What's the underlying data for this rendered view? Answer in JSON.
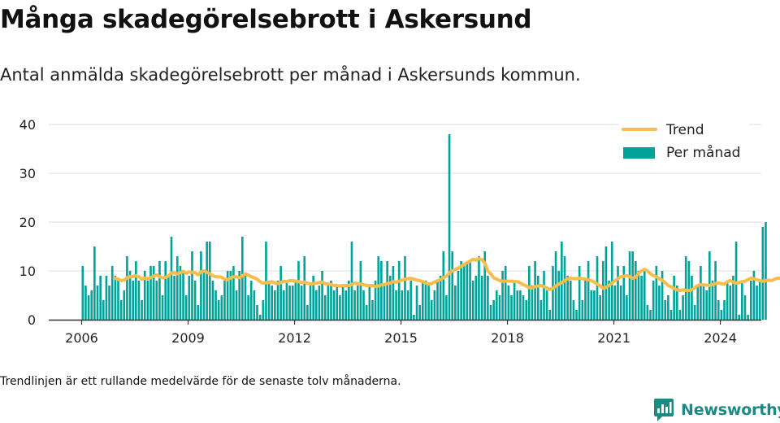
{
  "title": "Många skadegörelsebrott i Askersund",
  "subtitle": "Antal anmälda skadegörelsebrott per månad i Askersunds kommun.",
  "note": "Trendlinjen är ett rullande medelvärde för de senaste tolv månaderna.",
  "brand": {
    "name": "Newsworthy",
    "icon": "newsworthy-logo-icon"
  },
  "colors": {
    "bar": "#00a39a",
    "trend": "#f8bd4b",
    "grid": "#dddddd",
    "axis": "#333333"
  },
  "chart_data": {
    "type": "bar",
    "x_start": "2006-01",
    "ylim": [
      0,
      40
    ],
    "yticks": [
      0,
      10,
      20,
      30,
      40
    ],
    "xtick_labels": [
      "2006",
      "2009",
      "2012",
      "2015",
      "2018",
      "2021",
      "2024"
    ],
    "grid": true,
    "legend_position": "top-right",
    "series": [
      {
        "name": "Per månad",
        "type": "bar",
        "values": [
          11,
          7,
          5,
          6,
          15,
          7,
          9,
          4,
          9,
          7,
          11,
          9,
          8,
          4,
          6,
          13,
          10,
          8,
          12,
          8,
          4,
          10,
          8,
          11,
          11,
          8,
          12,
          5,
          12,
          9,
          17,
          9,
          13,
          11,
          10,
          5,
          9,
          14,
          8,
          3,
          14,
          10,
          16,
          16,
          8,
          6,
          4,
          5,
          8,
          10,
          10,
          11,
          6,
          10,
          17,
          9,
          5,
          8,
          6,
          3,
          1,
          4,
          16,
          8,
          7,
          6,
          8,
          11,
          6,
          8,
          7,
          7,
          8,
          12,
          7,
          13,
          3,
          7,
          9,
          6,
          7,
          10,
          5,
          7,
          8,
          6,
          7,
          5,
          7,
          6,
          8,
          16,
          6,
          7,
          12,
          6,
          3,
          7,
          4,
          8,
          13,
          12,
          7,
          12,
          9,
          11,
          6,
          12,
          6,
          13,
          6,
          8,
          1,
          7,
          3,
          8,
          8,
          7,
          4,
          6,
          8,
          9,
          14,
          5,
          38,
          14,
          7,
          10,
          12,
          11,
          12,
          12,
          8,
          9,
          13,
          9,
          14,
          9,
          3,
          4,
          6,
          5,
          10,
          11,
          7,
          5,
          8,
          6,
          6,
          5,
          4,
          11,
          7,
          12,
          9,
          4,
          10,
          6,
          2,
          11,
          14,
          10,
          16,
          13,
          9,
          8,
          4,
          2,
          11,
          4,
          8,
          12,
          6,
          6,
          13,
          5,
          12,
          15,
          8,
          16,
          7,
          11,
          7,
          11,
          5,
          14,
          14,
          12,
          10,
          9,
          10,
          3,
          2,
          8,
          11,
          7,
          10,
          4,
          5,
          2,
          9,
          7,
          2,
          5,
          13,
          12,
          9,
          3,
          7,
          11,
          7,
          6,
          14,
          8,
          12,
          4,
          2,
          4,
          8,
          7,
          9,
          16,
          1,
          8,
          5,
          1,
          8,
          10,
          7,
          8,
          19,
          20
        ]
      },
      {
        "name": "Trend",
        "type": "line",
        "values": [
          null,
          null,
          null,
          null,
          null,
          null,
          null,
          null,
          null,
          null,
          null,
          8.5,
          8.3,
          8.0,
          8.1,
          8.6,
          8.8,
          8.9,
          9.0,
          8.8,
          8.3,
          8.5,
          8.4,
          8.6,
          8.9,
          9.2,
          8.8,
          8.6,
          8.7,
          8.9,
          9.6,
          9.6,
          9.4,
          9.6,
          9.9,
          9.5,
          9.8,
          9.7,
          9.6,
          9.2,
          9.8,
          10.0,
          9.7,
          9.4,
          9.0,
          8.8,
          8.8,
          8.7,
          8.3,
          8.2,
          8.6,
          8.8,
          8.8,
          8.6,
          9.0,
          9.4,
          9.1,
          8.8,
          8.6,
          8.3,
          7.8,
          7.5,
          7.6,
          7.6,
          7.8,
          7.5,
          7.4,
          7.6,
          7.9,
          7.8,
          8.0,
          8.0,
          7.9,
          7.8,
          7.6,
          7.7,
          7.5,
          7.3,
          7.4,
          7.5,
          7.6,
          7.7,
          7.4,
          7.3,
          7.2,
          7.0,
          7.0,
          6.9,
          7.0,
          7.0,
          7.0,
          7.2,
          7.5,
          7.4,
          7.3,
          7.2,
          7.0,
          7.0,
          7.0,
          6.8,
          6.9,
          7.1,
          7.2,
          7.4,
          7.5,
          7.8,
          7.7,
          7.9,
          8.1,
          8.3,
          8.4,
          8.5,
          8.3,
          8.1,
          8.0,
          7.8,
          7.5,
          7.3,
          7.4,
          7.7,
          8.0,
          8.2,
          8.6,
          8.9,
          9.6,
          10.0,
          10.3,
          10.6,
          10.9,
          11.3,
          11.7,
          12.0,
          12.4,
          12.2,
          12.5,
          12.3,
          11.6,
          10.0,
          9.4,
          8.6,
          8.3,
          8.0,
          7.9,
          7.9,
          7.9,
          7.9,
          7.8,
          7.8,
          7.5,
          7.2,
          6.9,
          6.6,
          6.5,
          6.8,
          6.9,
          7.0,
          6.8,
          6.5,
          6.2,
          6.4,
          6.9,
          7.3,
          7.6,
          8.0,
          8.4,
          8.5,
          8.4,
          8.4,
          8.5,
          8.4,
          8.3,
          8.2,
          8.0,
          7.7,
          7.3,
          6.9,
          6.4,
          6.6,
          7.0,
          7.5,
          8.0,
          8.4,
          8.8,
          8.9,
          9.0,
          8.8,
          8.5,
          8.7,
          9.5,
          10.0,
          10.3,
          10.0,
          9.4,
          9.0,
          8.8,
          8.4,
          8.1,
          7.6,
          7.0,
          6.7,
          6.4,
          6.1,
          6.0,
          6.1,
          6.0,
          6.0,
          6.1,
          6.6,
          7.0,
          7.2,
          7.1,
          7.1,
          7.0,
          7.2,
          7.4,
          7.5,
          7.4,
          7.3,
          7.8,
          8.0,
          7.7,
          7.5,
          7.6,
          7.8,
          7.9,
          8.2,
          8.5,
          8.4,
          8.2,
          8.0,
          7.9,
          8.0,
          8.1,
          8.0,
          8.3,
          8.5,
          8.5,
          8.5,
          9.7
        ]
      }
    ]
  }
}
